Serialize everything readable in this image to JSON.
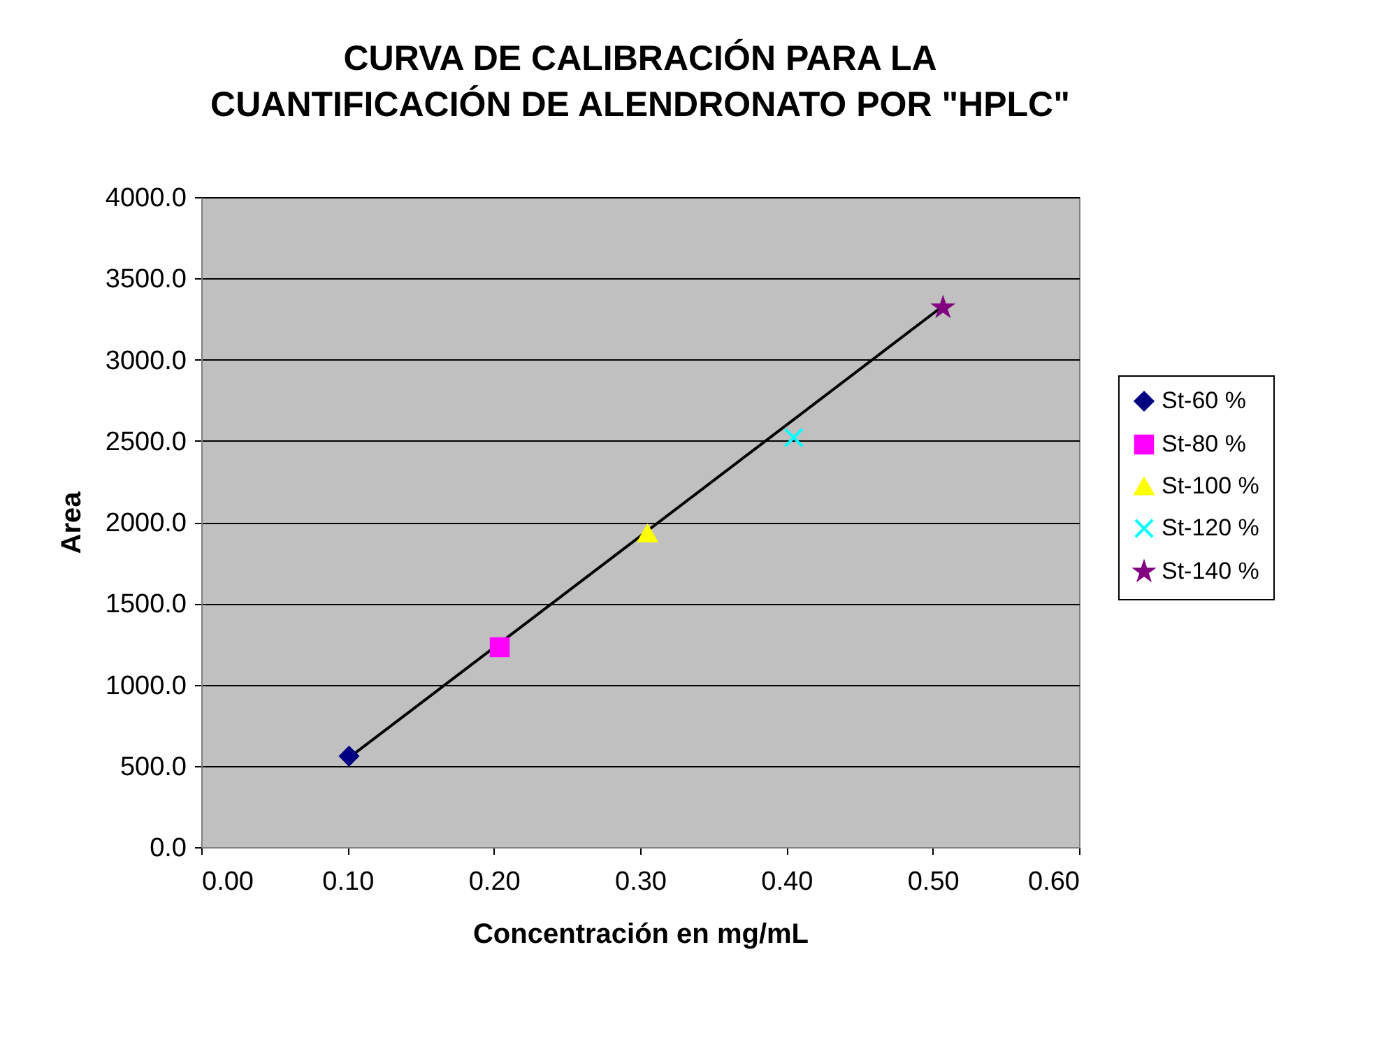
{
  "chart_data": {
    "type": "scatter",
    "title": "CURVA DE CALIBRACIÓN PARA LA\nCUANTIFICACIÓN DE ALENDRONATO POR \"HPLC\"",
    "xlabel": "Concentración en mg/mL",
    "ylabel": "Area",
    "series": [
      {
        "name": "St-60 %",
        "color": "#000080",
        "marker": "diamond",
        "x": [
          0.101
        ],
        "values": [
          560
        ]
      },
      {
        "name": "St-80 %",
        "color": "#ff00ff",
        "marker": "square",
        "x": [
          0.204
        ],
        "values": [
          1230
        ]
      },
      {
        "name": "St-100 %",
        "color": "#ffff00",
        "marker": "triangle",
        "x": [
          0.305
        ],
        "values": [
          1930
        ]
      },
      {
        "name": "St-120 %",
        "color": "#00ffff",
        "marker": "cross",
        "x": [
          0.405
        ],
        "values": [
          2520
        ]
      },
      {
        "name": "St-140 %",
        "color": "#800080",
        "marker": "star",
        "x": [
          0.507
        ],
        "values": [
          3320
        ]
      },
      {
        "type": "line",
        "color": "#000000",
        "line_style": "solid",
        "x": [
          0.101,
          0.507
        ],
        "values": [
          550,
          3330
        ]
      }
    ],
    "xlim": [
      0,
      0.6
    ],
    "ylim": [
      0,
      4000
    ],
    "xticks": [
      {
        "value": 0,
        "label": "0.00"
      },
      {
        "value": 0.1,
        "label": "0.10"
      },
      {
        "value": 0.2,
        "label": "0.20"
      },
      {
        "value": 0.3,
        "label": "0.30"
      },
      {
        "value": 0.4,
        "label": "0.40"
      },
      {
        "value": 0.5,
        "label": "0.50"
      },
      {
        "value": 0.6,
        "label": "0.60"
      }
    ],
    "yticks": [
      {
        "value": 0,
        "label": "0.0"
      },
      {
        "value": 500,
        "label": "500.0"
      },
      {
        "value": 1000,
        "label": "1000.0"
      },
      {
        "value": 1500,
        "label": "1500.0"
      },
      {
        "value": 2000,
        "label": "2000.0"
      },
      {
        "value": 2500,
        "label": "2500.0"
      },
      {
        "value": 3000,
        "label": "3000.0"
      },
      {
        "value": 3500,
        "label": "3500.0"
      },
      {
        "value": 4000,
        "label": "4000.0"
      }
    ],
    "grid": "y",
    "legend": "right"
  }
}
